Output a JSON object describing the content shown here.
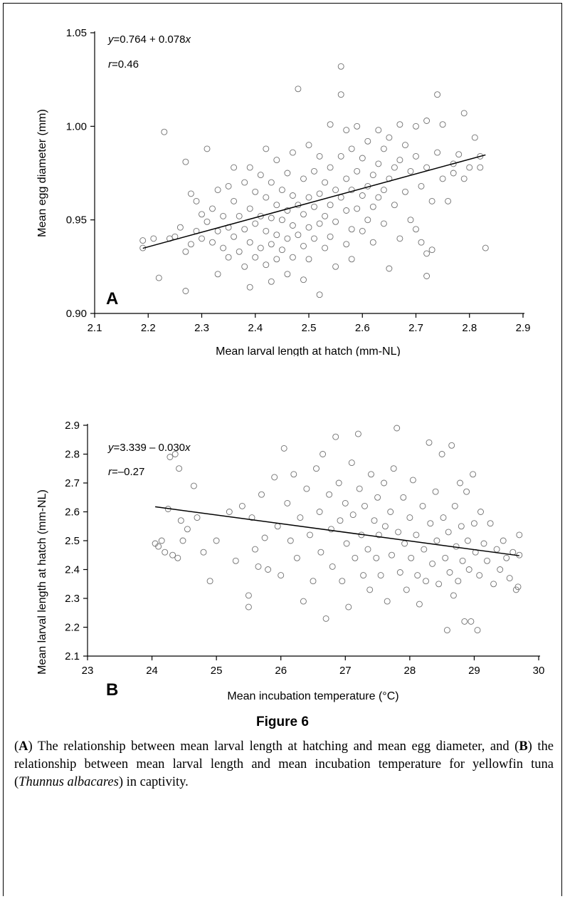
{
  "figure": {
    "title": "Figure 6",
    "caption_parts": [
      {
        "text": "(",
        "style": "normal"
      },
      {
        "text": "A",
        "style": "bold"
      },
      {
        "text": ") The relationship between mean larval length at hatching and mean egg diameter, and (",
        "style": "normal"
      },
      {
        "text": "B",
        "style": "bold"
      },
      {
        "text": ") the relationship between mean larval length and mean incubation temperature for yellowfin tuna (",
        "style": "normal"
      },
      {
        "text": "Thunnus albacares",
        "style": "italic"
      },
      {
        "text": ") in captivity.",
        "style": "normal"
      }
    ]
  },
  "chart_data": [
    {
      "type": "scatter",
      "panel_label": "A",
      "xlabel": "Mean larval length at hatch (mm-NL)",
      "ylabel": "Mean egg diameter (mm)",
      "xlim": [
        2.1,
        2.9
      ],
      "ylim": [
        0.9,
        1.05
      ],
      "xticks": [
        2.1,
        2.2,
        2.3,
        2.4,
        2.5,
        2.6,
        2.7,
        2.8,
        2.9
      ],
      "xtick_labels": [
        "2.1",
        "2.2",
        "2.3",
        "2.4",
        "2.5",
        "2.6",
        "2.7",
        "2.8",
        "2.9"
      ],
      "yticks": [
        0.9,
        0.95,
        1.0,
        1.05
      ],
      "ytick_labels": [
        "0.90",
        "0.95",
        "1.00",
        "1.05"
      ],
      "grid": false,
      "equation": {
        "y": "y",
        "mid": "=0.764 + 0.078",
        "x": "x"
      },
      "r_text": {
        "r": "r",
        "value": "=0.46"
      },
      "regression": {
        "intercept": 0.764,
        "slope": 0.078,
        "x_range": [
          2.19,
          2.83
        ]
      },
      "marker": "open-circle",
      "points": [
        [
          2.19,
          0.939
        ],
        [
          2.19,
          0.935
        ],
        [
          2.21,
          0.94
        ],
        [
          2.22,
          0.919
        ],
        [
          2.23,
          0.997
        ],
        [
          2.24,
          0.94
        ],
        [
          2.25,
          0.941
        ],
        [
          2.26,
          0.946
        ],
        [
          2.27,
          0.981
        ],
        [
          2.27,
          0.933
        ],
        [
          2.27,
          0.912
        ],
        [
          2.28,
          0.964
        ],
        [
          2.28,
          0.937
        ],
        [
          2.29,
          0.96
        ],
        [
          2.29,
          0.944
        ],
        [
          2.3,
          0.953
        ],
        [
          2.3,
          0.94
        ],
        [
          2.31,
          0.988
        ],
        [
          2.31,
          0.949
        ],
        [
          2.32,
          0.938
        ],
        [
          2.32,
          0.956
        ],
        [
          2.33,
          0.966
        ],
        [
          2.33,
          0.944
        ],
        [
          2.33,
          0.921
        ],
        [
          2.34,
          0.952
        ],
        [
          2.34,
          0.935
        ],
        [
          2.35,
          0.968
        ],
        [
          2.35,
          0.946
        ],
        [
          2.35,
          0.93
        ],
        [
          2.36,
          0.978
        ],
        [
          2.36,
          0.96
        ],
        [
          2.36,
          0.941
        ],
        [
          2.37,
          0.952
        ],
        [
          2.37,
          0.933
        ],
        [
          2.38,
          0.97
        ],
        [
          2.38,
          0.945
        ],
        [
          2.38,
          0.925
        ],
        [
          2.39,
          0.978
        ],
        [
          2.39,
          0.956
        ],
        [
          2.39,
          0.938
        ],
        [
          2.39,
          0.914
        ],
        [
          2.4,
          0.965
        ],
        [
          2.4,
          0.948
        ],
        [
          2.4,
          0.93
        ],
        [
          2.41,
          0.974
        ],
        [
          2.41,
          0.952
        ],
        [
          2.41,
          0.935
        ],
        [
          2.42,
          0.988
        ],
        [
          2.42,
          0.962
        ],
        [
          2.42,
          0.944
        ],
        [
          2.42,
          0.926
        ],
        [
          2.43,
          0.97
        ],
        [
          2.43,
          0.951
        ],
        [
          2.43,
          0.937
        ],
        [
          2.43,
          0.917
        ],
        [
          2.44,
          0.982
        ],
        [
          2.44,
          0.958
        ],
        [
          2.44,
          0.942
        ],
        [
          2.44,
          0.929
        ],
        [
          2.45,
          0.966
        ],
        [
          2.45,
          0.95
        ],
        [
          2.45,
          0.934
        ],
        [
          2.46,
          0.975
        ],
        [
          2.46,
          0.955
        ],
        [
          2.46,
          0.94
        ],
        [
          2.46,
          0.921
        ],
        [
          2.47,
          0.986
        ],
        [
          2.47,
          0.963
        ],
        [
          2.47,
          0.947
        ],
        [
          2.47,
          0.93
        ],
        [
          2.48,
          1.02
        ],
        [
          2.48,
          0.958
        ],
        [
          2.48,
          0.942
        ],
        [
          2.49,
          0.972
        ],
        [
          2.49,
          0.953
        ],
        [
          2.49,
          0.936
        ],
        [
          2.49,
          0.918
        ],
        [
          2.5,
          0.99
        ],
        [
          2.5,
          0.962
        ],
        [
          2.5,
          0.946
        ],
        [
          2.5,
          0.929
        ],
        [
          2.51,
          0.976
        ],
        [
          2.51,
          0.957
        ],
        [
          2.51,
          0.94
        ],
        [
          2.52,
          0.984
        ],
        [
          2.52,
          0.964
        ],
        [
          2.52,
          0.948
        ],
        [
          2.52,
          0.91
        ],
        [
          2.53,
          0.97
        ],
        [
          2.53,
          0.952
        ],
        [
          2.53,
          0.935
        ],
        [
          2.54,
          1.001
        ],
        [
          2.54,
          0.978
        ],
        [
          2.54,
          0.958
        ],
        [
          2.54,
          0.941
        ],
        [
          2.55,
          0.966
        ],
        [
          2.55,
          0.949
        ],
        [
          2.55,
          0.925
        ],
        [
          2.56,
          1.032
        ],
        [
          2.56,
          1.017
        ],
        [
          2.56,
          0.984
        ],
        [
          2.56,
          0.962
        ],
        [
          2.57,
          0.998
        ],
        [
          2.57,
          0.972
        ],
        [
          2.57,
          0.955
        ],
        [
          2.57,
          0.937
        ],
        [
          2.58,
          0.988
        ],
        [
          2.58,
          0.966
        ],
        [
          2.58,
          0.945
        ],
        [
          2.58,
          0.929
        ],
        [
          2.59,
          1.0
        ],
        [
          2.59,
          0.976
        ],
        [
          2.59,
          0.956
        ],
        [
          2.6,
          0.983
        ],
        [
          2.6,
          0.963
        ],
        [
          2.6,
          0.944
        ],
        [
          2.61,
          0.992
        ],
        [
          2.61,
          0.968
        ],
        [
          2.61,
          0.95
        ],
        [
          2.62,
          0.974
        ],
        [
          2.62,
          0.957
        ],
        [
          2.62,
          0.938
        ],
        [
          2.63,
          0.998
        ],
        [
          2.63,
          0.98
        ],
        [
          2.63,
          0.962
        ],
        [
          2.64,
          0.988
        ],
        [
          2.64,
          0.966
        ],
        [
          2.64,
          0.948
        ],
        [
          2.65,
          0.994
        ],
        [
          2.65,
          0.972
        ],
        [
          2.65,
          0.924
        ],
        [
          2.66,
          0.978
        ],
        [
          2.66,
          0.958
        ],
        [
          2.67,
          1.001
        ],
        [
          2.67,
          0.982
        ],
        [
          2.67,
          0.94
        ],
        [
          2.68,
          0.99
        ],
        [
          2.68,
          0.965
        ],
        [
          2.69,
          0.976
        ],
        [
          2.69,
          0.95
        ],
        [
          2.7,
          1.0
        ],
        [
          2.7,
          0.984
        ],
        [
          2.7,
          0.945
        ],
        [
          2.71,
          0.968
        ],
        [
          2.71,
          0.938
        ],
        [
          2.72,
          1.003
        ],
        [
          2.72,
          0.978
        ],
        [
          2.72,
          0.932
        ],
        [
          2.72,
          0.92
        ],
        [
          2.73,
          0.96
        ],
        [
          2.73,
          0.934
        ],
        [
          2.74,
          1.017
        ],
        [
          2.74,
          0.986
        ],
        [
          2.75,
          1.001
        ],
        [
          2.75,
          0.972
        ],
        [
          2.76,
          0.96
        ],
        [
          2.77,
          0.98
        ],
        [
          2.77,
          0.975
        ],
        [
          2.78,
          0.985
        ],
        [
          2.79,
          1.007
        ],
        [
          2.79,
          0.972
        ],
        [
          2.8,
          0.978
        ],
        [
          2.81,
          0.994
        ],
        [
          2.82,
          0.984
        ],
        [
          2.82,
          0.978
        ],
        [
          2.83,
          0.935
        ]
      ]
    },
    {
      "type": "scatter",
      "panel_label": "B",
      "xlabel": "Mean incubation temperature (°C)",
      "ylabel": "Mean larval length at hatch (mm-NL)",
      "xlim": [
        23,
        30
      ],
      "ylim": [
        2.1,
        2.9
      ],
      "xticks": [
        23,
        24,
        25,
        26,
        27,
        28,
        29,
        30
      ],
      "xtick_labels": [
        "23",
        "24",
        "25",
        "26",
        "27",
        "28",
        "29",
        "30"
      ],
      "yticks": [
        2.1,
        2.2,
        2.3,
        2.4,
        2.5,
        2.6,
        2.7,
        2.8,
        2.9
      ],
      "ytick_labels": [
        "2.1",
        "2.2",
        "2.3",
        "2.4",
        "2.5",
        "2.6",
        "2.7",
        "2.8",
        "2.9"
      ],
      "grid": false,
      "equation": {
        "y": "y",
        "mid": "=3.339 – 0.030",
        "x": "x"
      },
      "r_text": {
        "r": "r",
        "value": "=–0.27"
      },
      "regression": {
        "intercept": 3.339,
        "slope": -0.03,
        "x_range": [
          24.05,
          29.7
        ]
      },
      "marker": "open-circle",
      "points": [
        [
          24.05,
          2.49
        ],
        [
          24.1,
          2.48
        ],
        [
          24.15,
          2.5
        ],
        [
          24.2,
          2.46
        ],
        [
          24.25,
          2.61
        ],
        [
          24.28,
          2.79
        ],
        [
          24.32,
          2.45
        ],
        [
          24.36,
          2.8
        ],
        [
          24.4,
          2.44
        ],
        [
          24.42,
          2.75
        ],
        [
          24.45,
          2.57
        ],
        [
          24.48,
          2.5
        ],
        [
          24.55,
          2.54
        ],
        [
          24.65,
          2.69
        ],
        [
          24.7,
          2.58
        ],
        [
          24.8,
          2.46
        ],
        [
          24.9,
          2.36
        ],
        [
          25.0,
          2.5
        ],
        [
          25.2,
          2.6
        ],
        [
          25.3,
          2.43
        ],
        [
          25.4,
          2.62
        ],
        [
          25.5,
          2.31
        ],
        [
          25.5,
          2.27
        ],
        [
          25.55,
          2.58
        ],
        [
          25.6,
          2.47
        ],
        [
          25.65,
          2.41
        ],
        [
          25.7,
          2.66
        ],
        [
          25.75,
          2.51
        ],
        [
          25.8,
          2.4
        ],
        [
          25.9,
          2.72
        ],
        [
          25.95,
          2.55
        ],
        [
          26.0,
          2.38
        ],
        [
          26.05,
          2.82
        ],
        [
          26.1,
          2.63
        ],
        [
          26.15,
          2.5
        ],
        [
          26.2,
          2.73
        ],
        [
          26.25,
          2.44
        ],
        [
          26.3,
          2.58
        ],
        [
          26.35,
          2.29
        ],
        [
          26.4,
          2.68
        ],
        [
          26.45,
          2.52
        ],
        [
          26.5,
          2.36
        ],
        [
          26.55,
          2.75
        ],
        [
          26.6,
          2.6
        ],
        [
          26.62,
          2.46
        ],
        [
          26.65,
          2.8
        ],
        [
          26.7,
          2.23
        ],
        [
          26.75,
          2.66
        ],
        [
          26.78,
          2.54
        ],
        [
          26.8,
          2.41
        ],
        [
          26.85,
          2.86
        ],
        [
          26.9,
          2.7
        ],
        [
          26.92,
          2.57
        ],
        [
          26.95,
          2.36
        ],
        [
          27.0,
          2.63
        ],
        [
          27.02,
          2.49
        ],
        [
          27.05,
          2.27
        ],
        [
          27.1,
          2.77
        ],
        [
          27.12,
          2.59
        ],
        [
          27.15,
          2.44
        ],
        [
          27.2,
          2.87
        ],
        [
          27.22,
          2.68
        ],
        [
          27.25,
          2.52
        ],
        [
          27.28,
          2.38
        ],
        [
          27.3,
          2.62
        ],
        [
          27.35,
          2.47
        ],
        [
          27.38,
          2.33
        ],
        [
          27.4,
          2.73
        ],
        [
          27.45,
          2.57
        ],
        [
          27.48,
          2.44
        ],
        [
          27.5,
          2.65
        ],
        [
          27.52,
          2.52
        ],
        [
          27.55,
          2.38
        ],
        [
          27.6,
          2.7
        ],
        [
          27.62,
          2.55
        ],
        [
          27.65,
          2.29
        ],
        [
          27.7,
          2.6
        ],
        [
          27.72,
          2.45
        ],
        [
          27.75,
          2.75
        ],
        [
          27.8,
          2.89
        ],
        [
          27.82,
          2.53
        ],
        [
          27.85,
          2.39
        ],
        [
          27.9,
          2.65
        ],
        [
          27.92,
          2.49
        ],
        [
          27.95,
          2.33
        ],
        [
          28.0,
          2.58
        ],
        [
          28.02,
          2.44
        ],
        [
          28.05,
          2.71
        ],
        [
          28.1,
          2.52
        ],
        [
          28.12,
          2.38
        ],
        [
          28.15,
          2.28
        ],
        [
          28.2,
          2.62
        ],
        [
          28.22,
          2.47
        ],
        [
          28.25,
          2.36
        ],
        [
          28.3,
          2.84
        ],
        [
          28.32,
          2.56
        ],
        [
          28.35,
          2.42
        ],
        [
          28.4,
          2.67
        ],
        [
          28.42,
          2.5
        ],
        [
          28.45,
          2.35
        ],
        [
          28.5,
          2.8
        ],
        [
          28.52,
          2.58
        ],
        [
          28.55,
          2.44
        ],
        [
          28.58,
          2.19
        ],
        [
          28.6,
          2.53
        ],
        [
          28.62,
          2.39
        ],
        [
          28.65,
          2.83
        ],
        [
          28.68,
          2.31
        ],
        [
          28.7,
          2.62
        ],
        [
          28.72,
          2.48
        ],
        [
          28.75,
          2.36
        ],
        [
          28.78,
          2.7
        ],
        [
          28.8,
          2.55
        ],
        [
          28.82,
          2.43
        ],
        [
          28.85,
          2.22
        ],
        [
          28.88,
          2.67
        ],
        [
          28.9,
          2.5
        ],
        [
          28.92,
          2.4
        ],
        [
          28.95,
          2.22
        ],
        [
          28.98,
          2.73
        ],
        [
          29.0,
          2.56
        ],
        [
          29.02,
          2.46
        ],
        [
          29.05,
          2.19
        ],
        [
          29.08,
          2.38
        ],
        [
          29.1,
          2.6
        ],
        [
          29.15,
          2.49
        ],
        [
          29.2,
          2.43
        ],
        [
          29.25,
          2.56
        ],
        [
          29.3,
          2.35
        ],
        [
          29.35,
          2.47
        ],
        [
          29.4,
          2.4
        ],
        [
          29.45,
          2.5
        ],
        [
          29.5,
          2.44
        ],
        [
          29.55,
          2.37
        ],
        [
          29.6,
          2.46
        ],
        [
          29.65,
          2.33
        ],
        [
          29.7,
          2.52
        ],
        [
          29.7,
          2.45
        ],
        [
          29.68,
          2.34
        ]
      ]
    }
  ]
}
